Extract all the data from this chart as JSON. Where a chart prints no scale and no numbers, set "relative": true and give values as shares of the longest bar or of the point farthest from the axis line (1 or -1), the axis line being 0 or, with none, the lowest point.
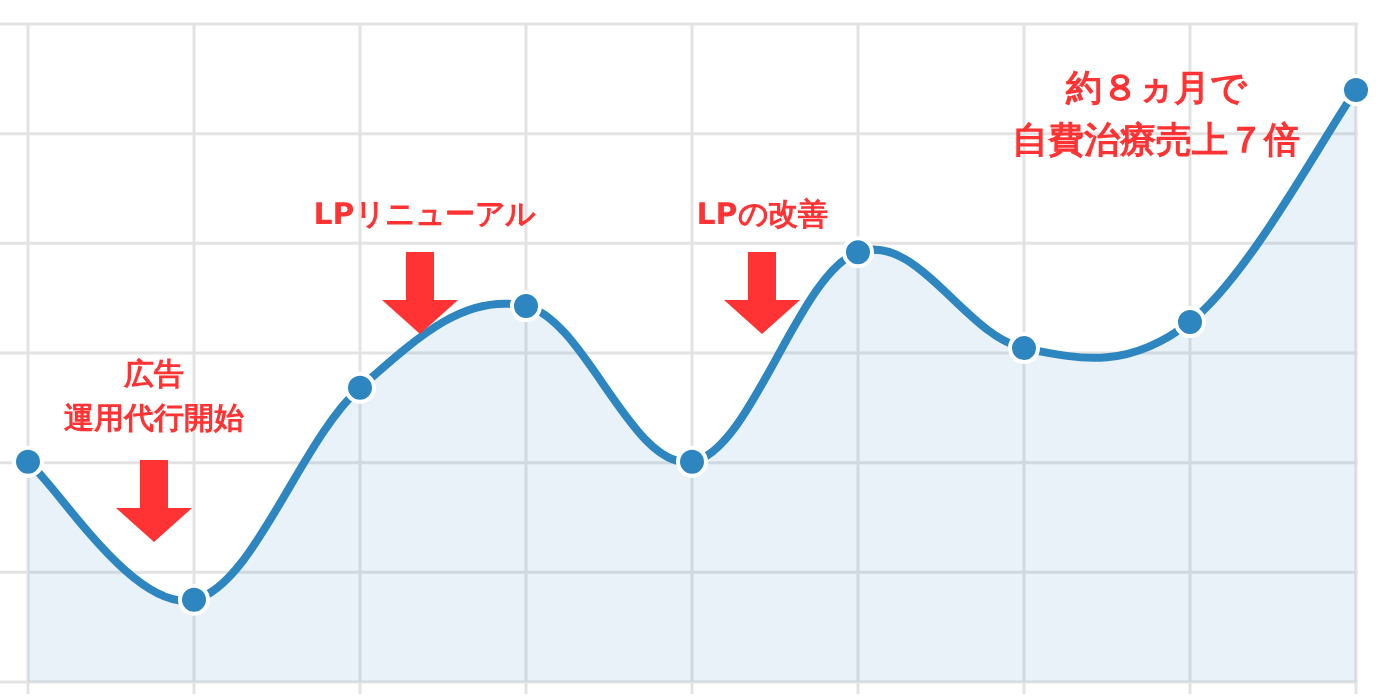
{
  "chart_data": {
    "type": "area",
    "relative": true,
    "categories": [
      null,
      null,
      null,
      null,
      null,
      null,
      null,
      null,
      null
    ],
    "series": [
      {
        "color": "#2e86c1",
        "values": [
          0.372,
          0.139,
          0.497,
          0.635,
          0.372,
          0.726,
          0.564,
          0.608,
          1
        ]
      }
    ],
    "grid": true,
    "marker": "circle",
    "annotations": [
      "広告運用代行開始",
      "LPリニューアル",
      "LPの改善",
      "約８ヵ月で自費治療売上７倍"
    ]
  }
}
